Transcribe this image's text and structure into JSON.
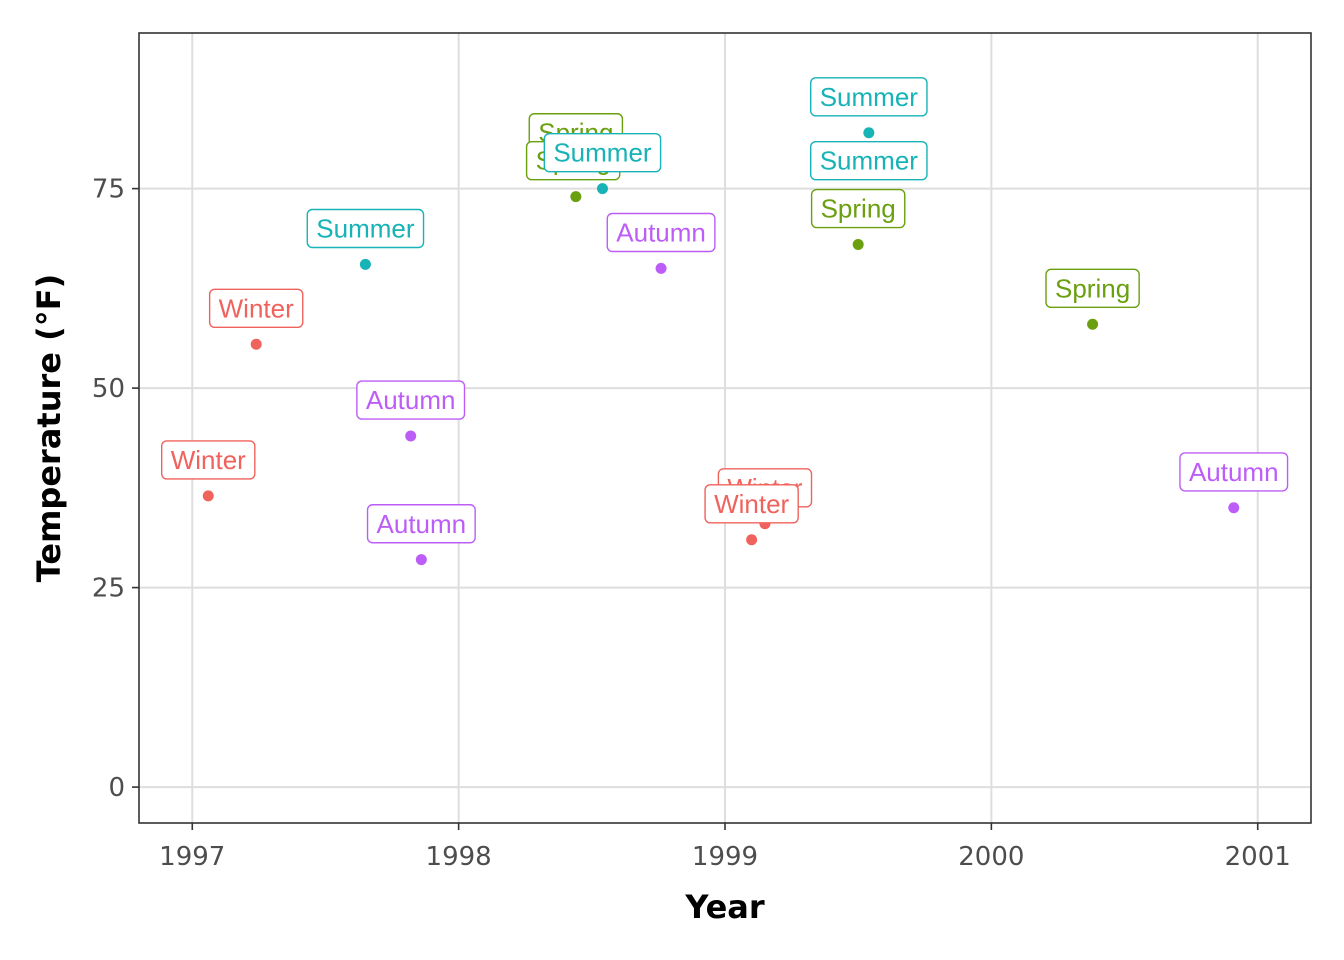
{
  "chart_data": {
    "type": "scatter",
    "title": "",
    "xlabel": "Year",
    "ylabel": "Temperature (°F)",
    "xlim": [
      1996.8,
      2001.2
    ],
    "ylim": [
      -4.5,
      94.5
    ],
    "x_ticks": [
      1997,
      1998,
      1999,
      2000,
      2001
    ],
    "x_tick_labels": [
      "1997",
      "1998",
      "1999",
      "2000",
      "2001"
    ],
    "y_ticks": [
      0,
      25,
      50,
      75
    ],
    "y_tick_labels": [
      "0",
      "25",
      "50",
      "75"
    ],
    "grid": true,
    "legend": "none",
    "season_colors": {
      "Winter": "#f0625c",
      "Spring": "#6aa00f",
      "Summer": "#17b3b7",
      "Autumn": "#bd5df7"
    },
    "points": [
      {
        "x": 1997.06,
        "y": 36.5,
        "label": "Winter"
      },
      {
        "x": 1997.24,
        "y": 55.5,
        "label": "Winter"
      },
      {
        "x": 1997.65,
        "y": 65.5,
        "label": "Summer"
      },
      {
        "x": 1997.82,
        "y": 44.0,
        "label": "Autumn"
      },
      {
        "x": 1997.86,
        "y": 28.5,
        "label": "Autumn"
      },
      {
        "x": 1998.44,
        "y": 74.0,
        "label": "Spring"
      },
      {
        "x": 1998.54,
        "y": 75.0,
        "label": "Summer"
      },
      {
        "x": 1998.76,
        "y": 65.0,
        "label": "Autumn"
      },
      {
        "x": 1999.1,
        "y": 31.0,
        "label": "Winter"
      },
      {
        "x": 1999.15,
        "y": 33.0,
        "label": "Winter"
      },
      {
        "x": 1999.5,
        "y": 68.0,
        "label": "Spring"
      },
      {
        "x": 1999.54,
        "y": 82.0,
        "label": "Summer"
      },
      {
        "x": 2000.38,
        "y": 58.0,
        "label": "Spring"
      },
      {
        "x": 2000.91,
        "y": 35.0,
        "label": "Autumn"
      }
    ],
    "text_labels": [
      {
        "text": "Spring",
        "x": 1998.44,
        "y": 82.0
      },
      {
        "text": "Spring",
        "x": 1998.43,
        "y": 78.5
      },
      {
        "text": "Summer",
        "x": 1998.54,
        "y": 79.5
      },
      {
        "text": "Summer",
        "x": 1999.54,
        "y": 86.5
      },
      {
        "text": "Summer",
        "x": 1999.54,
        "y": 78.5
      },
      {
        "text": "Spring",
        "x": 1999.5,
        "y": 72.5
      },
      {
        "text": "Summer",
        "x": 1997.65,
        "y": 70.0
      },
      {
        "text": "Autumn",
        "x": 1998.76,
        "y": 69.5
      },
      {
        "text": "Winter",
        "x": 1997.24,
        "y": 60.0
      },
      {
        "text": "Spring",
        "x": 2000.38,
        "y": 62.5
      },
      {
        "text": "Autumn",
        "x": 1997.82,
        "y": 48.5
      },
      {
        "text": "Winter",
        "x": 1997.06,
        "y": 41.0
      },
      {
        "text": "Autumn",
        "x": 2000.91,
        "y": 39.5
      },
      {
        "text": "Winter",
        "x": 1999.15,
        "y": 37.5
      },
      {
        "text": "Winter",
        "x": 1999.1,
        "y": 35.5
      },
      {
        "text": "Autumn",
        "x": 1997.86,
        "y": 33.0
      }
    ]
  }
}
